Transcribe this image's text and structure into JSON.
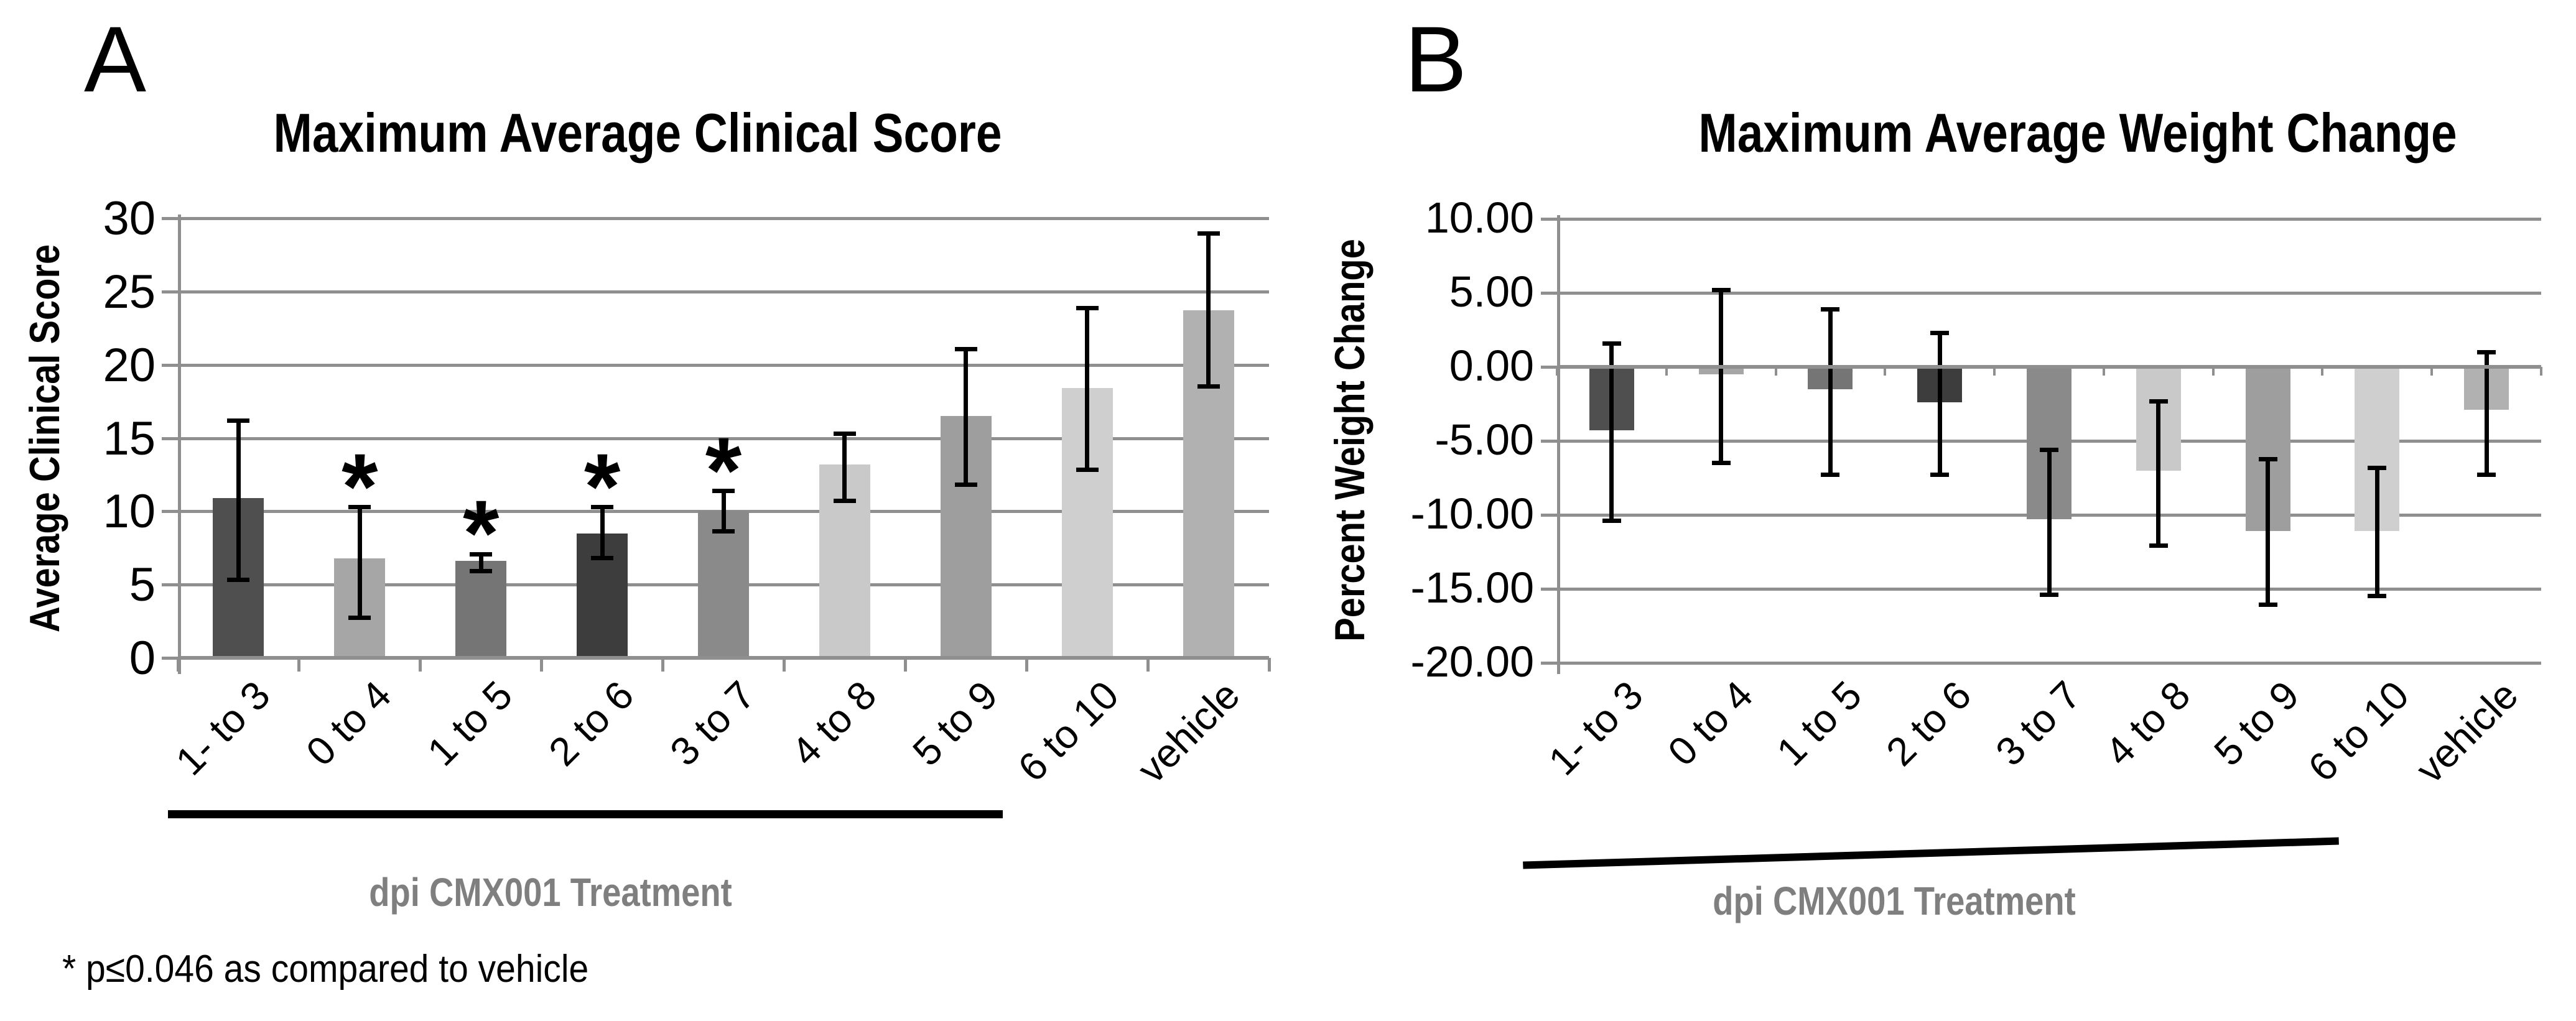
{
  "figure": {
    "panel_a_letter": "A",
    "panel_b_letter": "B",
    "footnote": "* p≤0.046 as compared to vehicle"
  },
  "chart_data": [
    {
      "id": "clinical",
      "type": "bar",
      "panel": "A",
      "title": "Maximum Average Clinical Score",
      "ylabel": "Average Clinical Score",
      "xlabel": "dpi CMX001 Treatment",
      "categories": [
        "1- to 3",
        "0 to 4",
        "1 to 5",
        "2 to 6",
        "3 to 7",
        "4 to 8",
        "5 to 9",
        "6 to 10",
        "vehicle"
      ],
      "values": [
        10.9,
        6.8,
        6.6,
        8.5,
        10.0,
        13.2,
        16.5,
        18.4,
        23.7
      ],
      "error_low": [
        5.3,
        2.7,
        5.9,
        6.8,
        8.6,
        10.7,
        11.8,
        12.8,
        18.5
      ],
      "error_high": [
        16.2,
        10.3,
        7.1,
        10.3,
        11.4,
        15.3,
        21.1,
        23.9,
        29.0
      ],
      "significant": [
        false,
        true,
        true,
        true,
        true,
        false,
        false,
        false,
        false
      ],
      "sig_symbol": "*",
      "ylim": [
        0,
        30
      ],
      "ytick_step": 5,
      "ytick_labels": [
        "0",
        "5",
        "10",
        "15",
        "20",
        "25",
        "30"
      ],
      "bar_colors": [
        "#4f4f4f",
        "#a6a6a6",
        "#757575",
        "#3d3d3d",
        "#8a8a8a",
        "#c9c9c9",
        "#9e9e9e",
        "#cfcfcf",
        "#b1b1b1"
      ],
      "grid": true,
      "legend": "none",
      "underline_span": [
        "1- to 3",
        "6 to 10"
      ]
    },
    {
      "id": "weight",
      "type": "bar",
      "panel": "B",
      "title": "Maximum Average Weight Change",
      "ylabel": "Percent Weight Change",
      "xlabel": "dpi CMX001 Treatment",
      "categories": [
        "1- to 3",
        "0 to 4",
        "1 to 5",
        "2 to 6",
        "3 to 7",
        "4 to 8",
        "5 to 9",
        "6 to 10",
        "vehicle"
      ],
      "values": [
        -4.3,
        -0.5,
        -1.5,
        -2.4,
        -10.3,
        -7.0,
        -11.1,
        -11.1,
        -2.9
      ],
      "error_low": [
        -10.4,
        -6.5,
        -7.3,
        -7.3,
        -15.4,
        -12.1,
        -16.1,
        -15.5,
        -7.3
      ],
      "error_high": [
        1.6,
        5.2,
        3.9,
        2.3,
        -5.6,
        -2.3,
        -6.2,
        -6.8,
        1.0
      ],
      "significant": [
        false,
        false,
        false,
        false,
        false,
        false,
        false,
        false,
        false
      ],
      "sig_symbol": "*",
      "ylim": [
        -20,
        10
      ],
      "ytick_step": 5,
      "ytick_labels": [
        "-20.00",
        "-15.00",
        "-10.00",
        "-5.00",
        "0.00",
        "5.00",
        "10.00"
      ],
      "bar_colors": [
        "#4f4f4f",
        "#a6a6a6",
        "#757575",
        "#3d3d3d",
        "#8a8a8a",
        "#c9c9c9",
        "#9e9e9e",
        "#cfcfcf",
        "#b1b1b1"
      ],
      "grid": true,
      "legend": "none",
      "underline_span": [
        "1- to 3",
        "6 to 10"
      ]
    }
  ]
}
